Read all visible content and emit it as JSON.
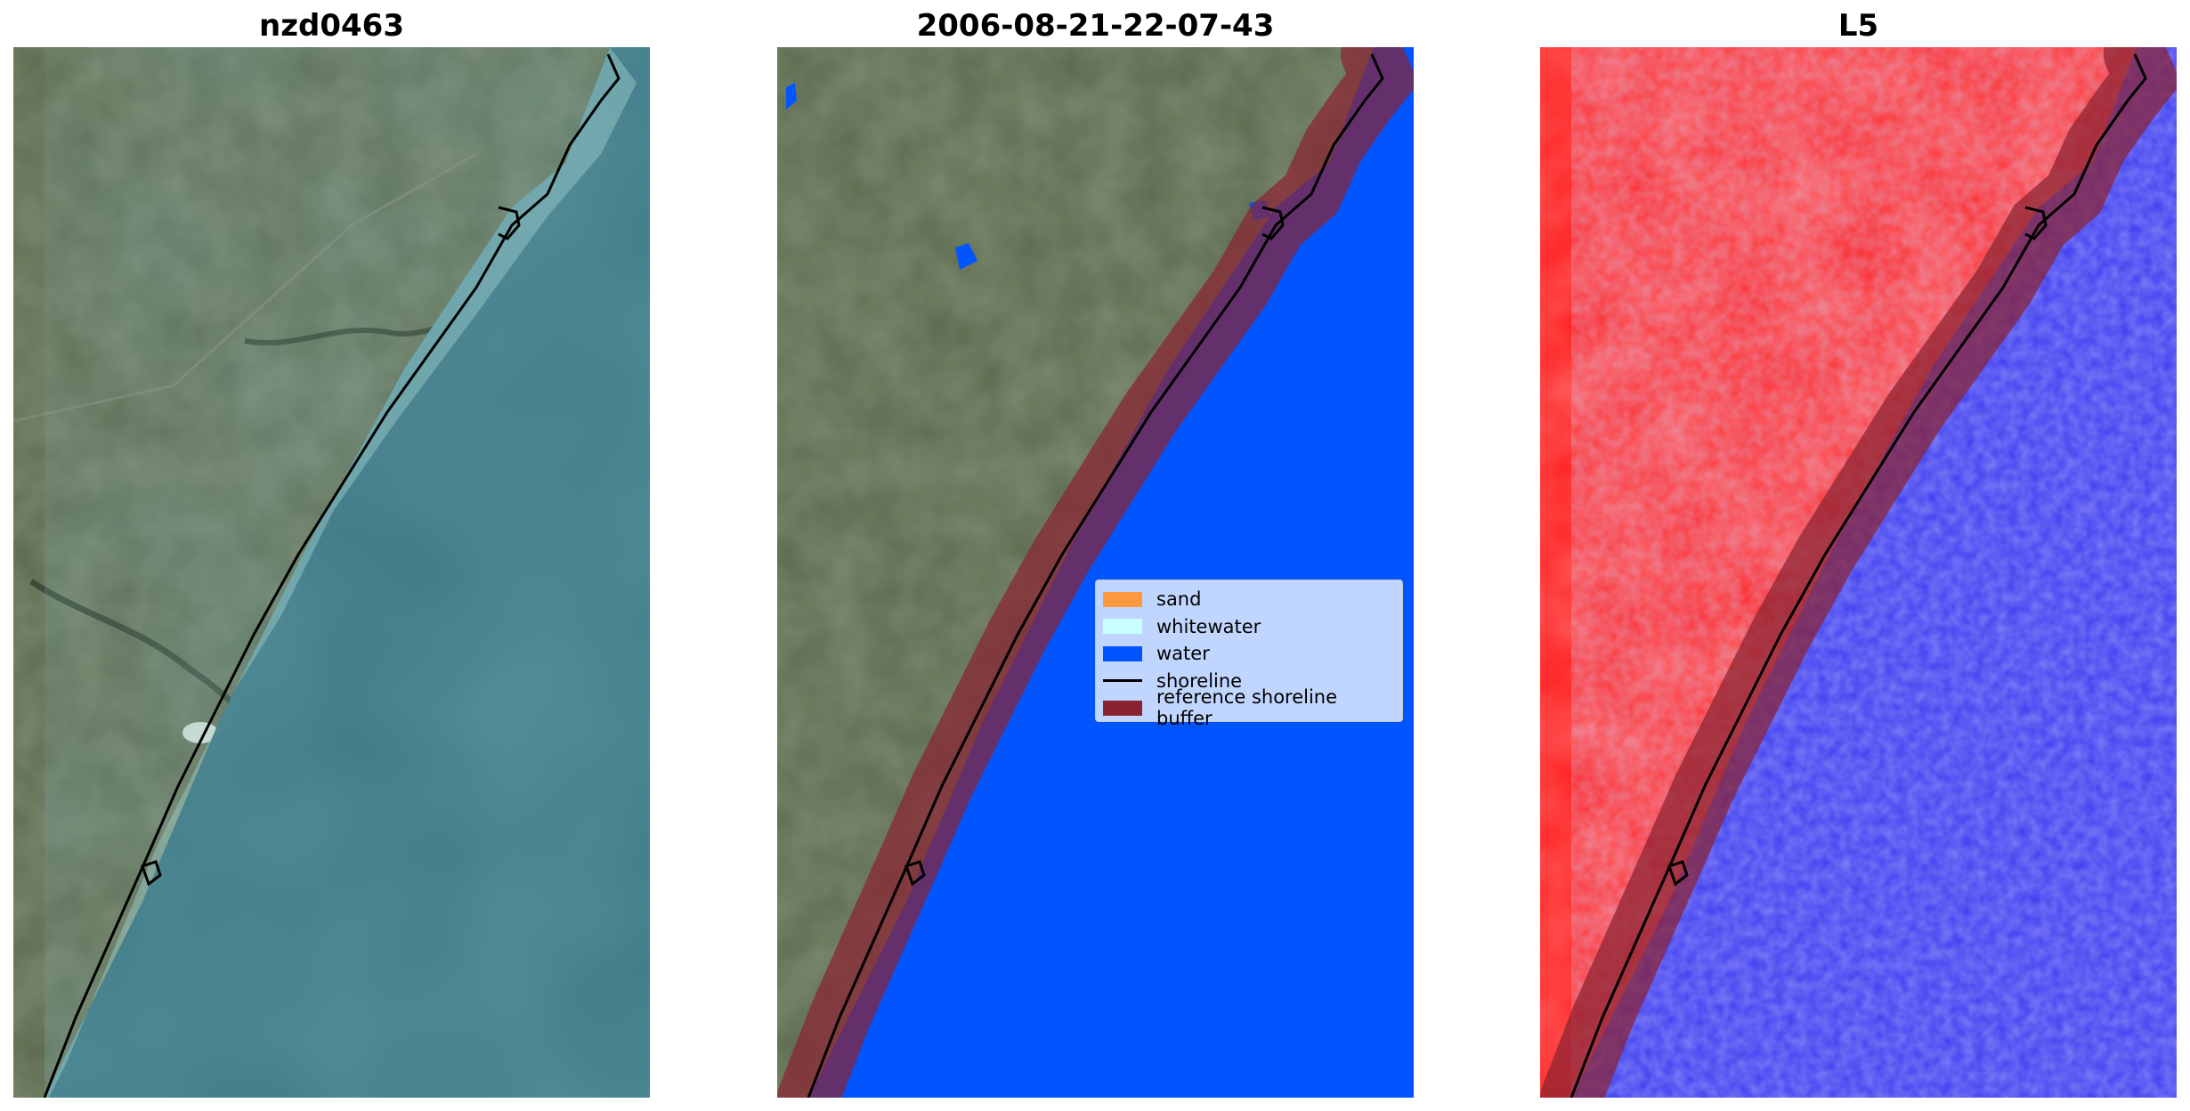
{
  "panels": [
    {
      "title": "nzd0463",
      "kind": "rgb"
    },
    {
      "title": "2006-08-21-22-07-43",
      "kind": "classified"
    },
    {
      "title": "L5",
      "kind": "index"
    }
  ],
  "legend": {
    "placement": "center-right of middle panel",
    "entries": [
      {
        "label": "sand",
        "color": "#ff9940",
        "type": "patch"
      },
      {
        "label": "whitewater",
        "color": "#c8ffff",
        "type": "patch"
      },
      {
        "label": "water",
        "color": "#0055ff",
        "type": "patch"
      },
      {
        "label": "shoreline",
        "color": "#000000",
        "type": "line"
      },
      {
        "label": "reference shoreline buffer",
        "color": "#8b2232",
        "type": "patch"
      }
    ]
  },
  "colors": {
    "land": "#5b6a4e",
    "sea_rgb": "#3f7a86",
    "surf": "#9fd0cf",
    "water_class": "#0055ff",
    "buffer": "#8b2232",
    "land_index": "#ff1a1a",
    "sea_index": "#3b3bf0"
  }
}
